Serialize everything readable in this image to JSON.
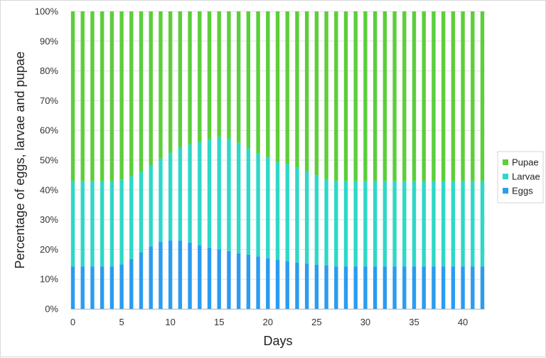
{
  "chart_data": {
    "type": "bar",
    "stacked": true,
    "percent": true,
    "xlabel": "Days",
    "ylabel": "Percentage of eggs, larvae and pupae",
    "ylim": [
      0,
      100
    ],
    "y_ticks": [
      "0%",
      "10%",
      "20%",
      "30%",
      "40%",
      "50%",
      "60%",
      "70%",
      "80%",
      "90%",
      "100%"
    ],
    "x_ticks": [
      "0",
      "5",
      "10",
      "15",
      "20",
      "25",
      "30",
      "35",
      "40"
    ],
    "x": [
      0,
      1,
      2,
      3,
      4,
      5,
      6,
      7,
      8,
      9,
      10,
      11,
      12,
      13,
      14,
      15,
      16,
      17,
      18,
      19,
      20,
      21,
      22,
      23,
      24,
      25,
      26,
      27,
      28,
      29,
      30,
      31,
      32,
      33,
      34,
      35,
      36,
      37,
      38,
      39,
      40,
      41,
      42
    ],
    "series": [
      {
        "name": "Eggs",
        "color": "#2b9cf0",
        "values": [
          14.3,
          14.3,
          14.3,
          14.3,
          14.3,
          15,
          16.8,
          19,
          21,
          22.5,
          23,
          23,
          22.3,
          21.3,
          20.6,
          20,
          19.4,
          18.7,
          18.2,
          17.6,
          17,
          16.5,
          16,
          15.6,
          15.2,
          14.9,
          14.6,
          14.3,
          14.3,
          14.3,
          14.3,
          14.3,
          14.3,
          14.3,
          14.3,
          14.3,
          14.3,
          14.3,
          14.3,
          14.3,
          14.3,
          14.3,
          14.3
        ]
      },
      {
        "name": "Larvae",
        "color": "#2ed8c8",
        "values": [
          28.6,
          28.6,
          28.6,
          28.6,
          28.6,
          28.5,
          27.7,
          27,
          27.2,
          28,
          29.5,
          31.2,
          33,
          34.8,
          36.5,
          37.7,
          37.8,
          37.1,
          35.8,
          34.7,
          34,
          32.8,
          32.6,
          31.8,
          31,
          30,
          29,
          28.7,
          28.6,
          28.6,
          28.6,
          28.6,
          28.6,
          28.6,
          28.6,
          28.6,
          28.6,
          28.6,
          28.6,
          28.6,
          28.6,
          28.6,
          28.6
        ]
      },
      {
        "name": "Pupae",
        "color": "#5cce3a",
        "values": [
          57.1,
          57.1,
          57.1,
          57.1,
          57.1,
          56.5,
          55.5,
          54,
          51.8,
          49.5,
          47.5,
          45.8,
          44.7,
          43.9,
          42.9,
          42.3,
          42.8,
          44.2,
          46,
          47.7,
          49,
          50.7,
          51.4,
          52.6,
          53.8,
          55.1,
          56.4,
          57,
          57.1,
          57.1,
          57.1,
          57.1,
          57.1,
          57.1,
          57.1,
          57.1,
          57.1,
          57.1,
          57.1,
          57.1,
          57.1,
          57.1,
          57.1
        ]
      }
    ],
    "legend": {
      "position": "right",
      "order": [
        "Pupae",
        "Larvae",
        "Eggs"
      ]
    },
    "grid": true
  }
}
